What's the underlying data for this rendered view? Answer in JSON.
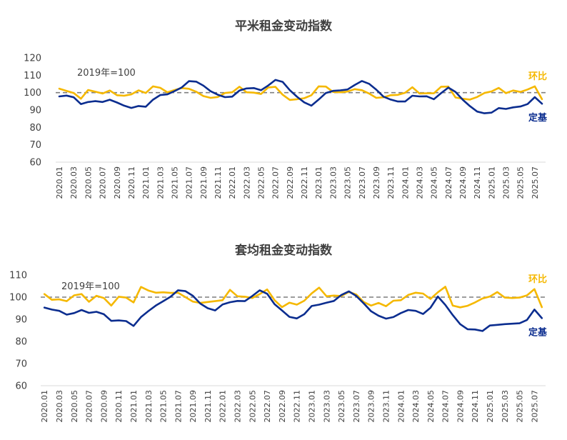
{
  "colors": {
    "huanbi": "#F5B800",
    "dingji": "#0B2D8F",
    "baseline": "#7F7F7F",
    "axis": "#D9D9D9"
  },
  "chart_data": [
    {
      "type": "line",
      "title": "平米租金变动指数",
      "annotation": "2019年=100",
      "reference_line": 100,
      "ylim": [
        60,
        120
      ],
      "yticks": [
        60,
        70,
        80,
        90,
        100,
        110,
        120
      ],
      "x": [
        "2020.01",
        "2020.02",
        "2020.03",
        "2020.04",
        "2020.05",
        "2020.06",
        "2020.07",
        "2020.08",
        "2020.09",
        "2020.10",
        "2020.11",
        "2020.12",
        "2021.01",
        "2021.02",
        "2021.03",
        "2021.04",
        "2021.05",
        "2021.06",
        "2021.07",
        "2021.08",
        "2021.09",
        "2021.10",
        "2021.11",
        "2021.12",
        "2022.01",
        "2022.02",
        "2022.03",
        "2022.04",
        "2022.05",
        "2022.06",
        "2022.07",
        "2022.08",
        "2022.09",
        "2022.10",
        "2022.11",
        "2022.12",
        "2023.01",
        "2023.02",
        "2023.03",
        "2023.04",
        "2023.05",
        "2023.06",
        "2023.07",
        "2023.08",
        "2023.09",
        "2023.10",
        "2023.11",
        "2023.12",
        "2024.01",
        "2024.02",
        "2024.03",
        "2024.04",
        "2024.05",
        "2024.06",
        "2024.07",
        "2024.08",
        "2024.09",
        "2024.10",
        "2024.11",
        "2024.12",
        "2025.01",
        "2025.02",
        "2025.03",
        "2025.04",
        "2025.05",
        "2025.06",
        "2025.07",
        "2025.08"
      ],
      "xtick_labels": [
        "2020.01",
        "2020.03",
        "2020.05",
        "2020.07",
        "2020.09",
        "2020.11",
        "2021.01",
        "2021.03",
        "2021.05",
        "2021.07",
        "2021.09",
        "2021.11",
        "2022.01",
        "2022.03",
        "2022.05",
        "2022.07",
        "2022.09",
        "2022.11",
        "2023.01",
        "2023.03",
        "2023.05",
        "2023.07",
        "2023.09",
        "2023.11",
        "2024.01",
        "2024.03",
        "2024.05",
        "2024.07",
        "2024.09",
        "2024.11",
        "2025.01",
        "2025.03",
        "2025.05",
        "2025.07"
      ],
      "series": [
        {
          "name": "环比",
          "values": [
            102.3,
            101.0,
            99.8,
            96.5,
            101.5,
            100.5,
            99.5,
            101.2,
            98.5,
            98.2,
            99.0,
            101.3,
            99.8,
            103.6,
            102.8,
            100.2,
            101.5,
            102.6,
            102.2,
            100.5,
            98.0,
            97.0,
            97.5,
            99.8,
            100.2,
            103.4,
            100.2,
            100.0,
            99.2,
            103.0,
            103.3,
            98.8,
            95.8,
            96.2,
            96.8,
            98.5,
            103.6,
            103.5,
            100.4,
            100.2,
            100.6,
            102.0,
            101.4,
            99.5,
            97.0,
            97.3,
            98.5,
            98.7,
            99.9,
            103.1,
            99.5,
            99.6,
            99.6,
            103.4,
            103.5,
            97.2,
            96.5,
            96.0,
            97.5,
            99.8,
            100.7,
            102.7,
            99.7,
            101.2,
            100.4,
            101.8,
            103.6,
            96.2
          ]
        },
        {
          "name": "定基",
          "values": [
            97.8,
            98.3,
            97.3,
            93.4,
            94.6,
            95.1,
            94.6,
            95.9,
            94.3,
            92.5,
            91.2,
            92.3,
            91.9,
            95.9,
            98.6,
            99.0,
            100.9,
            103.0,
            106.6,
            106.3,
            104.0,
            100.8,
            98.8,
            97.4,
            97.7,
            101.2,
            102.4,
            102.6,
            101.4,
            104.1,
            107.3,
            106.2,
            101.4,
            97.6,
            94.4,
            92.5,
            96.0,
            99.8,
            101.0,
            101.3,
            101.8,
            104.4,
            106.7,
            105.1,
            101.7,
            97.7,
            96.0,
            94.9,
            94.9,
            98.2,
            97.8,
            97.9,
            96.2,
            99.7,
            102.9,
            100.4,
            95.9,
            92.2,
            89.1,
            88.1,
            88.5,
            91.1,
            90.6,
            91.5,
            92.0,
            93.4,
            97.4,
            93.6
          ]
        }
      ],
      "legend": "inline-right"
    },
    {
      "type": "line",
      "title": "套均租金变动指数",
      "annotation": "2019年=100",
      "reference_line": 100,
      "ylim": [
        60,
        110
      ],
      "yticks": [
        60,
        70,
        80,
        90,
        100,
        110
      ],
      "x": [
        "2020.01",
        "2020.02",
        "2020.03",
        "2020.04",
        "2020.05",
        "2020.06",
        "2020.07",
        "2020.08",
        "2020.09",
        "2020.10",
        "2020.11",
        "2020.12",
        "2021.01",
        "2021.02",
        "2021.03",
        "2021.04",
        "2021.05",
        "2021.06",
        "2021.07",
        "2021.08",
        "2021.09",
        "2021.10",
        "2021.11",
        "2021.12",
        "2022.01",
        "2022.02",
        "2022.03",
        "2022.04",
        "2022.05",
        "2022.06",
        "2022.07",
        "2022.08",
        "2022.09",
        "2022.10",
        "2022.11",
        "2022.12",
        "2023.01",
        "2023.02",
        "2023.03",
        "2023.04",
        "2023.05",
        "2023.06",
        "2023.07",
        "2023.08",
        "2023.09",
        "2023.10",
        "2023.11",
        "2023.12",
        "2024.01",
        "2024.02",
        "2024.03",
        "2024.04",
        "2024.05",
        "2024.06",
        "2024.07",
        "2024.08",
        "2024.09",
        "2024.10",
        "2024.11",
        "2024.12",
        "2025.01",
        "2025.02",
        "2025.03",
        "2025.04",
        "2025.05",
        "2025.06",
        "2025.07",
        "2025.08"
      ],
      "xtick_labels": [
        "2020.01",
        "2020.03",
        "2020.05",
        "2020.07",
        "2020.09",
        "2020.11",
        "2021.01",
        "2021.03",
        "2021.05",
        "2021.07",
        "2021.09",
        "2021.11",
        "2022.01",
        "2022.03",
        "2022.05",
        "2022.07",
        "2022.09",
        "2022.11",
        "2023.01",
        "2023.03",
        "2023.05",
        "2023.07",
        "2023.09",
        "2023.11",
        "2024.01",
        "2024.03",
        "2024.05",
        "2024.07",
        "2024.09",
        "2024.11",
        "2025.01",
        "2025.03",
        "2025.05",
        "2025.07"
      ],
      "series": [
        {
          "name": "环比",
          "values": [
            101.4,
            98.8,
            99.0,
            98.2,
            100.8,
            101.4,
            97.9,
            100.6,
            99.6,
            96.2,
            100.2,
            99.8,
            97.6,
            104.6,
            103.0,
            102.0,
            102.2,
            101.9,
            102.0,
            100.0,
            98.0,
            97.4,
            97.8,
            98.2,
            98.6,
            103.3,
            100.4,
            100.2,
            99.6,
            101.4,
            103.5,
            98.6,
            95.5,
            97.5,
            96.6,
            98.4,
            101.7,
            104.3,
            100.4,
            100.7,
            100.5,
            102.4,
            101.2,
            97.8,
            96.2,
            97.4,
            95.9,
            98.4,
            98.6,
            101.0,
            102.0,
            101.6,
            99.2,
            102.2,
            104.7,
            96.2,
            95.4,
            96.1,
            97.6,
            99.4,
            100.3,
            102.3,
            99.8,
            99.6,
            99.8,
            100.8,
            103.6,
            95.5
          ]
        },
        {
          "name": "定基",
          "values": [
            95.3,
            94.4,
            93.8,
            92.1,
            92.8,
            94.2,
            92.9,
            93.4,
            92.3,
            89.3,
            89.5,
            89.2,
            87.0,
            91.0,
            93.7,
            96.2,
            98.2,
            100.2,
            103.1,
            102.7,
            100.6,
            97.1,
            95.0,
            94.0,
            96.7,
            97.7,
            98.3,
            98.2,
            100.5,
            103.1,
            101.5,
            96.8,
            94.0,
            91.1,
            90.4,
            92.3,
            96.0,
            96.6,
            97.5,
            98.3,
            101.0,
            102.6,
            100.5,
            97.2,
            93.6,
            91.6,
            90.3,
            91.0,
            92.8,
            94.2,
            93.8,
            92.4,
            95.2,
            100.3,
            96.5,
            91.9,
            87.8,
            85.5,
            85.4,
            84.7,
            87.2,
            87.5,
            87.8,
            88.0,
            88.2,
            89.7,
            94.4,
            90.5
          ]
        }
      ],
      "legend": "inline-right"
    }
  ]
}
